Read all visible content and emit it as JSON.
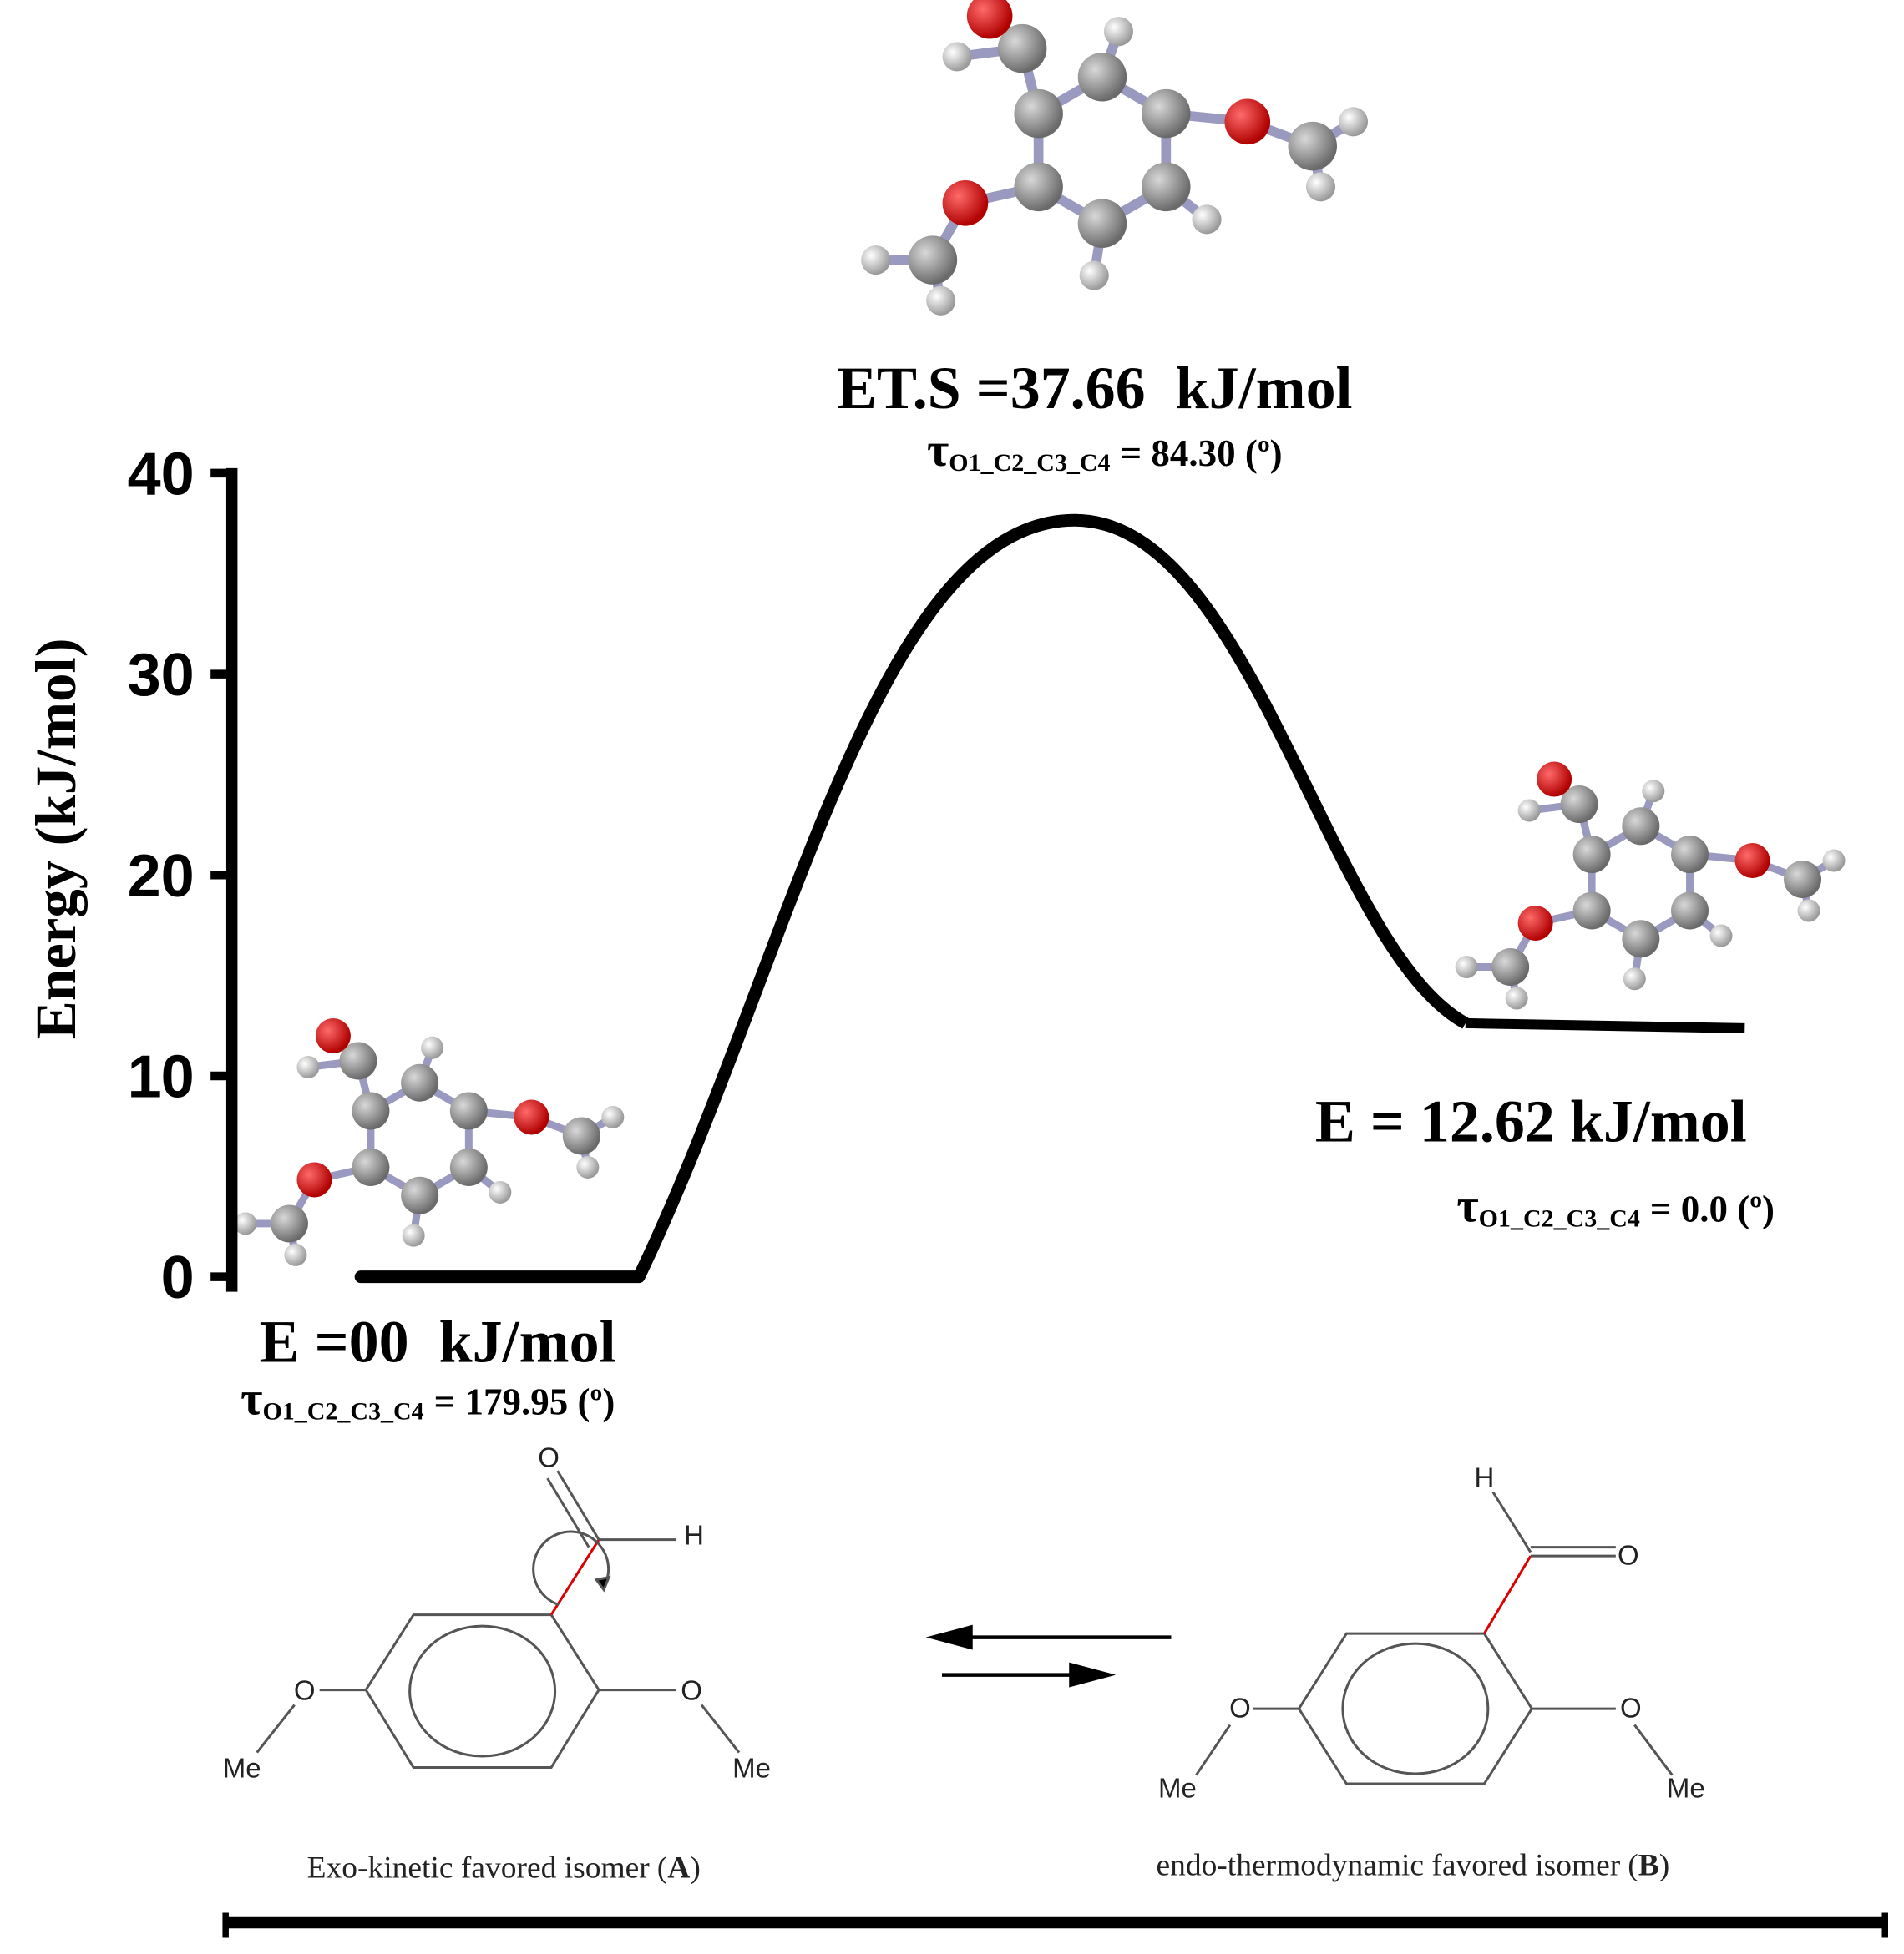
{
  "chart_data": {
    "type": "energy-profile",
    "y_label": "Energy (kJ/mol)",
    "ylim": [
      0,
      40
    ],
    "yticks": [
      0,
      10,
      20,
      30,
      40
    ],
    "color": "#000000",
    "values": [
      0,
      37.66,
      12.62
    ],
    "value_labels": [
      "E =00  kJ/mol",
      "ET.S =37.66  kJ/mol",
      "E = 12.62 kJ/mol"
    ],
    "torsions": [
      {
        "symbol": "τ",
        "subscript": "O1_C2_C3_C4",
        "text": "= 179.95 (º)"
      },
      {
        "symbol": "τ",
        "subscript": "O1_C2_C3_C4",
        "text": "= 84.30 (º)"
      },
      {
        "symbol": "τ",
        "subscript": "O1_C2_C3_C4",
        "text": "= 0.0 (º)"
      }
    ],
    "scheme": {
      "isomers": [
        {
          "caption": "Exo-kinetic favored isomer",
          "tag": "A",
          "atoms": [
            "O",
            "H",
            "O",
            "Me",
            "O",
            "Me"
          ]
        },
        {
          "caption": "endo-thermodynamic favored isomer",
          "tag": "B",
          "atoms": [
            "H",
            "O",
            "O",
            "Me",
            "O",
            "Me"
          ]
        }
      ]
    }
  }
}
